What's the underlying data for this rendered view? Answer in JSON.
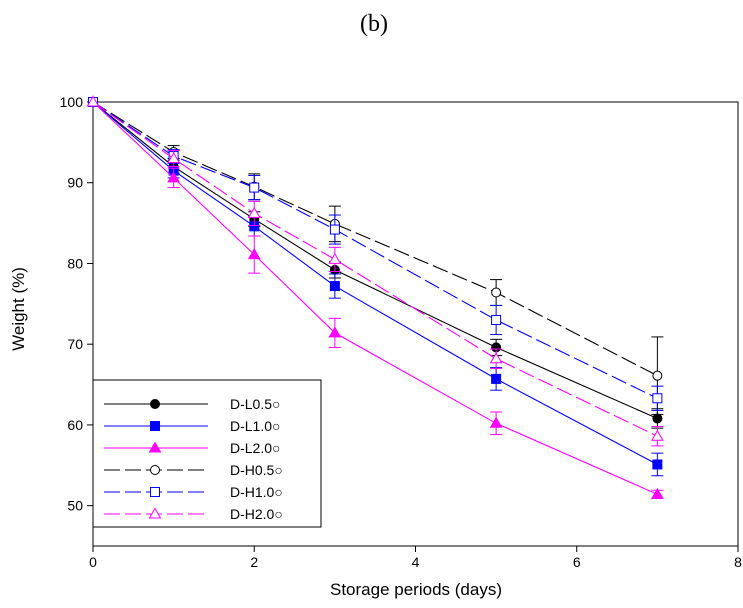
{
  "panel_label": "(b)",
  "chart_data": {
    "type": "line",
    "title": "",
    "xlabel": "Storage periods (days)",
    "ylabel": "Weight (%)",
    "xlim": [
      0,
      8
    ],
    "ylim": [
      45,
      100
    ],
    "xticks": [
      0,
      2,
      4,
      6,
      8
    ],
    "yticks": [
      50,
      60,
      70,
      80,
      90,
      100
    ],
    "x": [
      0,
      1,
      2,
      3,
      5,
      7
    ],
    "grid": false,
    "legend_position": "bottom-left",
    "series": [
      {
        "name": "D-L0.5○",
        "color": "#000000",
        "marker": "circle",
        "filled": true,
        "dash": "solid",
        "values": [
          100,
          92.0,
          85.5,
          79.2,
          69.6,
          60.8
        ],
        "errors": [
          0,
          0.8,
          0.9,
          1.0,
          1.0,
          1.2
        ]
      },
      {
        "name": "D-L1.0○",
        "color": "#0000ff",
        "marker": "square",
        "filled": true,
        "dash": "solid",
        "values": [
          100,
          91.5,
          84.6,
          77.2,
          65.7,
          55.1
        ],
        "errors": [
          0,
          0.9,
          1.2,
          1.5,
          1.4,
          1.4
        ]
      },
      {
        "name": "D-L2.0○",
        "color": "#ff00ff",
        "marker": "triangle",
        "filled": true,
        "dash": "solid",
        "values": [
          100,
          90.6,
          81.1,
          71.4,
          60.2,
          51.4
        ],
        "errors": [
          0,
          1.2,
          2.3,
          1.8,
          1.4,
          0.5
        ]
      },
      {
        "name": "D-H0.5○",
        "color": "#000000",
        "marker": "circle",
        "filled": false,
        "dash": "longdash",
        "values": [
          100,
          93.8,
          89.5,
          84.9,
          76.4,
          66.1
        ],
        "errors": [
          0,
          0.8,
          1.6,
          2.2,
          1.6,
          4.8
        ]
      },
      {
        "name": "D-H1.0○",
        "color": "#0000ff",
        "marker": "square",
        "filled": false,
        "dash": "longdash",
        "values": [
          100,
          93.3,
          89.4,
          84.2,
          73.0,
          63.3
        ],
        "errors": [
          0,
          0.8,
          1.5,
          1.8,
          1.8,
          1.5
        ]
      },
      {
        "name": "D-H2.0○",
        "color": "#ff00ff",
        "marker": "triangle",
        "filled": false,
        "dash": "longdash",
        "values": [
          100,
          93.0,
          86.2,
          80.5,
          68.2,
          58.6
        ],
        "errors": [
          0,
          1.0,
          1.5,
          1.5,
          1.2,
          1.2
        ]
      }
    ]
  }
}
